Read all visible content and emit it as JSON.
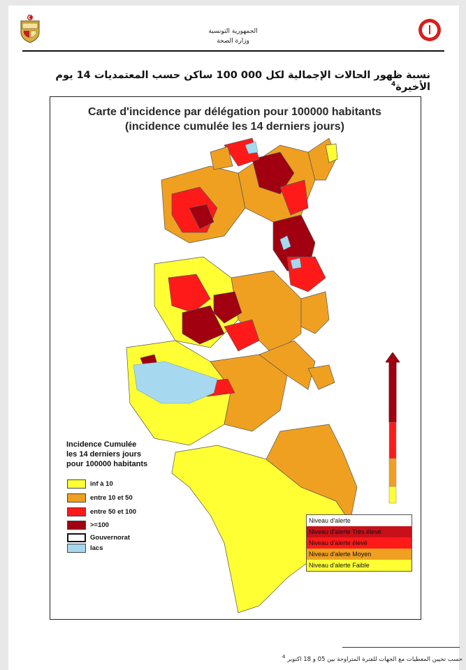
{
  "header": {
    "line1": "الجمهورية التونسية",
    "line2": "وزارة الصحة"
  },
  "page_title": "نسبة ظهور الحالات الإجمالية لكل 000 100 ساكن حسب المعتمديات 14 يوم الأخيرة",
  "page_title_note": "4",
  "map": {
    "title_line1": "Carte d'incidence par délégation pour 100000 habitants",
    "title_line2": "(incidence cumulée les 14 derniers jours)"
  },
  "legend": {
    "title_line1": "Incidence Cumulée",
    "title_line2": "les 14 derniers jours",
    "title_line3": "pour 100000 habitants",
    "items": [
      {
        "label": "inf à 10",
        "color": "#ffff33"
      },
      {
        "label": "entre 10 et 50",
        "color": "#f0a020"
      },
      {
        "label": "entre 50 et 100",
        "color": "#ff1a1a"
      },
      {
        "label": ">=100",
        "color": "#a00010"
      },
      {
        "label": "Gouvernorat",
        "color": "#ffffff"
      },
      {
        "label": "lacs",
        "color": "#a6d8f0"
      }
    ]
  },
  "alert_levels": {
    "header": "Niveau d'alerte",
    "items": [
      {
        "label": "Niveau d'alerte Très élevé",
        "color": "#c8101a"
      },
      {
        "label": "Niveau d'alerte élevé",
        "color": "#ff1a1a"
      },
      {
        "label": "Niveau d'alerte Moyen",
        "color": "#f0a020"
      },
      {
        "label": "Niveau d'alerte Faible",
        "color": "#ffff33"
      }
    ]
  },
  "footnote": "حسب تحيين المعطيات مع الجهات للفترة المتراوحة بين 05 و 18 اكتوبر",
  "footnote_mark": "4",
  "colors": {
    "lake": "#a6d8f0",
    "yellow": "#ffff33",
    "orange": "#f0a020",
    "red": "#ff1a1a",
    "darkred": "#a00010"
  }
}
